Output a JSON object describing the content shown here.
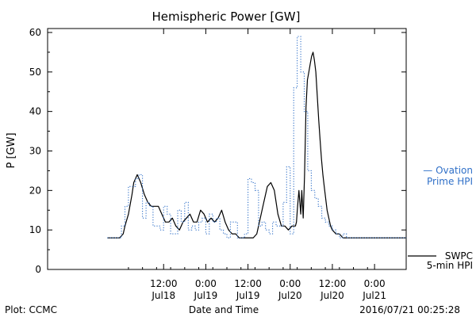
{
  "chart_data": {
    "type": "line",
    "title": "Hemispheric Power [GW]",
    "xlabel": "Date and Time",
    "ylabel": "P [GW]",
    "ylim": [
      0,
      61
    ],
    "yticks": [
      0,
      10,
      20,
      30,
      40,
      50,
      60
    ],
    "x_unit": "hours from 2016-07-17 00:00",
    "xlim": [
      3,
      105
    ],
    "xticks": [
      {
        "x": 36,
        "time": "12:00",
        "date": "Jul18"
      },
      {
        "x": 48,
        "time": "0:00",
        "date": "Jul19"
      },
      {
        "x": 60,
        "time": "12:00",
        "date": "Jul19"
      },
      {
        "x": 72,
        "time": "0:00",
        "date": "Jul20"
      },
      {
        "x": 84,
        "time": "12:00",
        "date": "Jul20"
      },
      {
        "x": 96,
        "time": "0:00",
        "date": "Jul21"
      }
    ],
    "minor_xticks": [
      26,
      30,
      34,
      38,
      42,
      46,
      50,
      54,
      58,
      62,
      66,
      70,
      74,
      78,
      82,
      86,
      90,
      94
    ],
    "series": [
      {
        "name": "SWPC 5-min HPI",
        "style": "solid",
        "color": "#000000",
        "x": [
          20,
          23.5,
          24.5,
          25,
          26,
          27,
          27.5,
          28.5,
          29.5,
          30.5,
          31.5,
          32.5,
          33.5,
          34.5,
          35.5,
          36.5,
          37.5,
          38.5,
          39.5,
          40.5,
          41.5,
          42.5,
          43.5,
          44.5,
          45.5,
          46.5,
          47.5,
          48.5,
          49.5,
          50.5,
          51.5,
          52.5,
          53.5,
          54.5,
          55.5,
          56.5,
          57.5,
          58.5,
          59.5,
          60.5,
          61.5,
          62.5,
          63.5,
          64.5,
          65.5,
          66.5,
          67.5,
          68.5,
          69.5,
          70.5,
          71.5,
          72.5,
          73.5,
          73.8,
          74.1,
          74.5,
          75.0,
          75.3,
          75.7,
          76.1,
          76.5,
          76.9,
          77.3,
          77.7,
          78.1,
          78.5,
          78.9,
          79.3,
          79.7,
          80.1,
          80.5,
          80.9,
          81.3,
          81.7,
          82.1,
          82.5,
          83.0,
          83.5,
          84.0,
          85.0,
          86.0,
          87.0,
          88.0,
          89.0,
          90.0,
          105
        ],
        "values": [
          8,
          8,
          9,
          11,
          14,
          19,
          22,
          24,
          22,
          19,
          17,
          16,
          16,
          16,
          14,
          12,
          12,
          13,
          11,
          10,
          12,
          13,
          14,
          12,
          12,
          15,
          14,
          12,
          13,
          12,
          13,
          15,
          12,
          10,
          9,
          9,
          8,
          8,
          8,
          8,
          8,
          9,
          13,
          17,
          21,
          22,
          20,
          14,
          11,
          11,
          10,
          11,
          11,
          12,
          16,
          20,
          14,
          20,
          13,
          24,
          41,
          48,
          50,
          52,
          54,
          55,
          53,
          50,
          44,
          38,
          33,
          28,
          24,
          21,
          18,
          15,
          13,
          11,
          10,
          9,
          9,
          8,
          8,
          8,
          8,
          8
        ]
      },
      {
        "name": "Ovation Prime HPI",
        "style": "dotted",
        "color": "#3070c8",
        "x": [
          20,
          24,
          25,
          26,
          28,
          29,
          30,
          31,
          32,
          33,
          35,
          36,
          37,
          38,
          40,
          41,
          42,
          43,
          44,
          45,
          46,
          47,
          48,
          49,
          50,
          51,
          52,
          53,
          54,
          55,
          57,
          59,
          60,
          61,
          62,
          63,
          64,
          65,
          66,
          67,
          68,
          69,
          70,
          71,
          72,
          73,
          74,
          75,
          76,
          77,
          78,
          79,
          80,
          81,
          82,
          83,
          84,
          85,
          86,
          87,
          88,
          89,
          90,
          105
        ],
        "values": [
          8,
          11,
          16,
          21,
          23,
          24,
          13,
          17,
          16,
          11,
          10,
          16,
          14,
          9,
          15,
          12,
          17,
          10,
          11,
          10,
          12,
          13,
          9,
          14,
          12,
          13,
          10,
          9,
          8,
          12,
          8,
          9,
          23,
          22,
          20,
          11,
          12,
          10,
          9,
          12,
          11,
          11,
          17,
          26,
          9,
          46,
          59,
          50,
          40,
          25,
          20,
          18,
          16,
          13,
          12,
          11,
          10,
          9,
          8,
          9,
          8,
          8,
          8,
          8
        ]
      }
    ],
    "legend": [
      {
        "text": "— Ovation",
        "color": "#3070c8"
      },
      {
        "text": "Prime HPI",
        "color": "#3070c8"
      },
      {
        "text": "SWPC",
        "color": "#000000"
      },
      {
        "text": "5-min HPI",
        "color": "#000000"
      }
    ],
    "legend_position": "right"
  },
  "footer": {
    "left": "Plot: CCMC",
    "center": "Date and Time",
    "right": "2016/07/21 00:25:28"
  }
}
